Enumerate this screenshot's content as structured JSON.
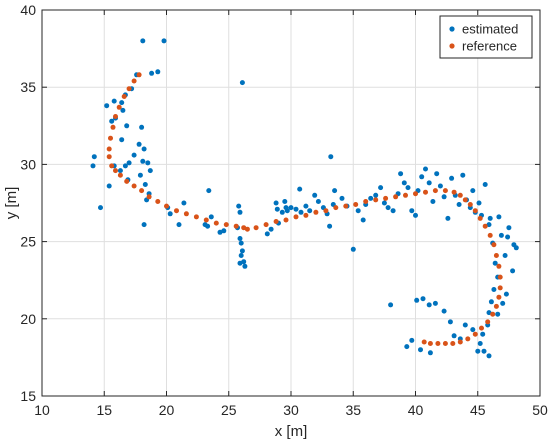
{
  "chart_data": {
    "type": "scatter",
    "xlabel": "x [m]",
    "ylabel": "y [m]",
    "xlim": [
      10,
      50
    ],
    "ylim": [
      15,
      40
    ],
    "xticks": [
      10,
      15,
      20,
      25,
      30,
      35,
      40,
      45,
      50
    ],
    "yticks": [
      15,
      20,
      25,
      30,
      35,
      40
    ],
    "grid": true,
    "legend_position": "top-right",
    "series": [
      {
        "name": "estimated",
        "color": "#0072BD",
        "points": [
          [
            18.1,
            38.0
          ],
          [
            19.8,
            38.0
          ],
          [
            19.3,
            36.0
          ],
          [
            18.8,
            35.9
          ],
          [
            17.6,
            35.8
          ],
          [
            17.2,
            34.9
          ],
          [
            16.7,
            34.5
          ],
          [
            16.4,
            34.0
          ],
          [
            15.8,
            34.1
          ],
          [
            15.2,
            33.8
          ],
          [
            16.5,
            33.5
          ],
          [
            15.9,
            33.0
          ],
          [
            15.6,
            32.8
          ],
          [
            16.8,
            32.5
          ],
          [
            16.4,
            31.6
          ],
          [
            17.8,
            31.3
          ],
          [
            18.0,
            32.4
          ],
          [
            18.2,
            31.0
          ],
          [
            18.5,
            30.1
          ],
          [
            18.7,
            29.6
          ],
          [
            18.1,
            30.2
          ],
          [
            17.4,
            30.6
          ],
          [
            17.0,
            30.1
          ],
          [
            16.7,
            29.9
          ],
          [
            16.3,
            29.6
          ],
          [
            15.8,
            29.9
          ],
          [
            16.9,
            29.0
          ],
          [
            17.9,
            29.3
          ],
          [
            18.3,
            28.7
          ],
          [
            18.6,
            28.1
          ],
          [
            18.4,
            27.7
          ],
          [
            18.2,
            26.1
          ],
          [
            14.2,
            30.5
          ],
          [
            14.1,
            29.9
          ],
          [
            14.7,
            27.2
          ],
          [
            15.4,
            28.6
          ],
          [
            20.1,
            27.2
          ],
          [
            20.3,
            26.8
          ],
          [
            21.0,
            26.1
          ],
          [
            21.4,
            27.5
          ],
          [
            23.1,
            26.1
          ],
          [
            23.3,
            26.0
          ],
          [
            23.4,
            28.3
          ],
          [
            23.6,
            26.6
          ],
          [
            24.3,
            25.6
          ],
          [
            24.6,
            25.7
          ],
          [
            25.8,
            27.3
          ],
          [
            25.9,
            26.9
          ],
          [
            25.7,
            25.9
          ],
          [
            25.9,
            25.2
          ],
          [
            26.0,
            24.9
          ],
          [
            26.1,
            24.4
          ],
          [
            26.0,
            24.1
          ],
          [
            26.2,
            23.7
          ],
          [
            25.9,
            23.6
          ],
          [
            26.3,
            23.4
          ],
          [
            26.1,
            35.3
          ],
          [
            28.1,
            25.5
          ],
          [
            28.4,
            25.8
          ],
          [
            28.8,
            27.5
          ],
          [
            28.9,
            27.1
          ],
          [
            29.0,
            26.2
          ],
          [
            29.3,
            26.9
          ],
          [
            29.5,
            27.6
          ],
          [
            29.6,
            27.2
          ],
          [
            29.7,
            27.0
          ],
          [
            30.0,
            27.2
          ],
          [
            30.4,
            27.1
          ],
          [
            30.7,
            28.4
          ],
          [
            30.8,
            26.9
          ],
          [
            31.2,
            27.3
          ],
          [
            31.5,
            27.0
          ],
          [
            31.9,
            28.0
          ],
          [
            32.2,
            27.6
          ],
          [
            32.6,
            27.2
          ],
          [
            32.9,
            26.8
          ],
          [
            33.1,
            26.0
          ],
          [
            33.4,
            27.4
          ],
          [
            33.5,
            28.3
          ],
          [
            33.2,
            30.5
          ],
          [
            34.1,
            27.8
          ],
          [
            34.5,
            27.3
          ],
          [
            35.0,
            24.5
          ],
          [
            35.4,
            27.0
          ],
          [
            35.8,
            26.4
          ],
          [
            36.0,
            27.4
          ],
          [
            36.4,
            27.8
          ],
          [
            36.8,
            28.0
          ],
          [
            37.2,
            28.5
          ],
          [
            37.5,
            27.5
          ],
          [
            37.8,
            27.2
          ],
          [
            38.2,
            27.0
          ],
          [
            38.6,
            28.1
          ],
          [
            38.8,
            29.4
          ],
          [
            39.1,
            28.8
          ],
          [
            39.4,
            28.5
          ],
          [
            39.7,
            27.0
          ],
          [
            40.0,
            26.7
          ],
          [
            40.2,
            28.3
          ],
          [
            40.5,
            29.2
          ],
          [
            40.8,
            29.7
          ],
          [
            41.1,
            28.8
          ],
          [
            41.4,
            27.6
          ],
          [
            41.7,
            29.4
          ],
          [
            42.0,
            28.6
          ],
          [
            42.3,
            27.9
          ],
          [
            42.6,
            26.5
          ],
          [
            42.9,
            29.1
          ],
          [
            43.2,
            28.0
          ],
          [
            43.5,
            27.4
          ],
          [
            43.8,
            29.3
          ],
          [
            44.1,
            27.7
          ],
          [
            44.4,
            27.2
          ],
          [
            44.6,
            28.3
          ],
          [
            44.8,
            26.9
          ],
          [
            45.1,
            27.5
          ],
          [
            45.3,
            26.7
          ],
          [
            45.6,
            28.7
          ],
          [
            45.9,
            26.1
          ],
          [
            46.2,
            24.9
          ],
          [
            46.4,
            23.6
          ],
          [
            46.6,
            22.7
          ],
          [
            46.3,
            21.9
          ],
          [
            46.1,
            21.1
          ],
          [
            45.9,
            20.4
          ],
          [
            46.6,
            20.3
          ],
          [
            47.0,
            21.0
          ],
          [
            47.3,
            21.6
          ],
          [
            47.8,
            23.1
          ],
          [
            47.9,
            24.8
          ],
          [
            48.1,
            24.6
          ],
          [
            47.5,
            25.9
          ],
          [
            47.2,
            24.1
          ],
          [
            45.8,
            19.6
          ],
          [
            45.4,
            19.0
          ],
          [
            45.2,
            18.4
          ],
          [
            45.5,
            17.9
          ],
          [
            45.9,
            17.6
          ],
          [
            45.0,
            17.9
          ],
          [
            44.6,
            19.3
          ],
          [
            44.0,
            19.6
          ],
          [
            43.6,
            18.7
          ],
          [
            43.1,
            18.9
          ],
          [
            42.8,
            19.8
          ],
          [
            42.3,
            20.5
          ],
          [
            41.6,
            21.0
          ],
          [
            41.1,
            20.9
          ],
          [
            40.6,
            21.3
          ],
          [
            40.1,
            21.2
          ],
          [
            39.7,
            18.6
          ],
          [
            40.4,
            18.0
          ],
          [
            41.2,
            17.8
          ],
          [
            39.3,
            18.2
          ],
          [
            38.0,
            20.9
          ],
          [
            46.7,
            26.6
          ],
          [
            46.9,
            25.4
          ],
          [
            47.4,
            25.3
          ],
          [
            46.0,
            26.5
          ]
        ]
      },
      {
        "name": "reference",
        "color": "#D95319",
        "points": [
          [
            17.8,
            35.8
          ],
          [
            17.4,
            35.4
          ],
          [
            17.0,
            34.9
          ],
          [
            16.6,
            34.4
          ],
          [
            16.2,
            33.7
          ],
          [
            15.9,
            33.1
          ],
          [
            15.7,
            32.4
          ],
          [
            15.5,
            31.7
          ],
          [
            15.4,
            31.0
          ],
          [
            15.4,
            30.5
          ],
          [
            15.6,
            29.9
          ],
          [
            15.9,
            29.6
          ],
          [
            16.3,
            29.3
          ],
          [
            16.8,
            28.9
          ],
          [
            17.4,
            28.6
          ],
          [
            18.0,
            28.3
          ],
          [
            18.6,
            27.9
          ],
          [
            19.3,
            27.6
          ],
          [
            20.0,
            27.3
          ],
          [
            20.8,
            27.0
          ],
          [
            21.6,
            26.8
          ],
          [
            22.4,
            26.6
          ],
          [
            23.2,
            26.4
          ],
          [
            24.0,
            26.2
          ],
          [
            24.8,
            26.1
          ],
          [
            25.6,
            26.0
          ],
          [
            26.2,
            25.9
          ],
          [
            26.5,
            25.8
          ],
          [
            27.2,
            25.9
          ],
          [
            28.0,
            26.1
          ],
          [
            28.8,
            26.3
          ],
          [
            29.6,
            26.4
          ],
          [
            30.4,
            26.6
          ],
          [
            31.2,
            26.7
          ],
          [
            32.0,
            26.9
          ],
          [
            32.8,
            27.0
          ],
          [
            33.6,
            27.2
          ],
          [
            34.4,
            27.3
          ],
          [
            35.2,
            27.4
          ],
          [
            36.0,
            27.6
          ],
          [
            36.8,
            27.7
          ],
          [
            37.6,
            27.8
          ],
          [
            38.4,
            27.9
          ],
          [
            39.2,
            28.0
          ],
          [
            40.0,
            28.1
          ],
          [
            40.8,
            28.2
          ],
          [
            41.6,
            28.3
          ],
          [
            42.4,
            28.3
          ],
          [
            43.1,
            28.2
          ],
          [
            43.6,
            28.0
          ],
          [
            44.0,
            27.7
          ],
          [
            44.4,
            27.4
          ],
          [
            44.8,
            27.0
          ],
          [
            45.2,
            26.5
          ],
          [
            45.6,
            26.0
          ],
          [
            46.0,
            25.4
          ],
          [
            46.3,
            24.8
          ],
          [
            46.5,
            24.1
          ],
          [
            46.7,
            23.4
          ],
          [
            46.8,
            22.7
          ],
          [
            46.8,
            22.0
          ],
          [
            46.7,
            21.4
          ],
          [
            46.5,
            20.8
          ],
          [
            46.2,
            20.3
          ],
          [
            45.8,
            19.8
          ],
          [
            45.3,
            19.4
          ],
          [
            44.8,
            19.0
          ],
          [
            44.2,
            18.7
          ],
          [
            43.6,
            18.5
          ],
          [
            43.0,
            18.4
          ],
          [
            42.4,
            18.4
          ],
          [
            41.8,
            18.4
          ],
          [
            41.2,
            18.4
          ],
          [
            40.7,
            18.5
          ]
        ]
      }
    ]
  }
}
